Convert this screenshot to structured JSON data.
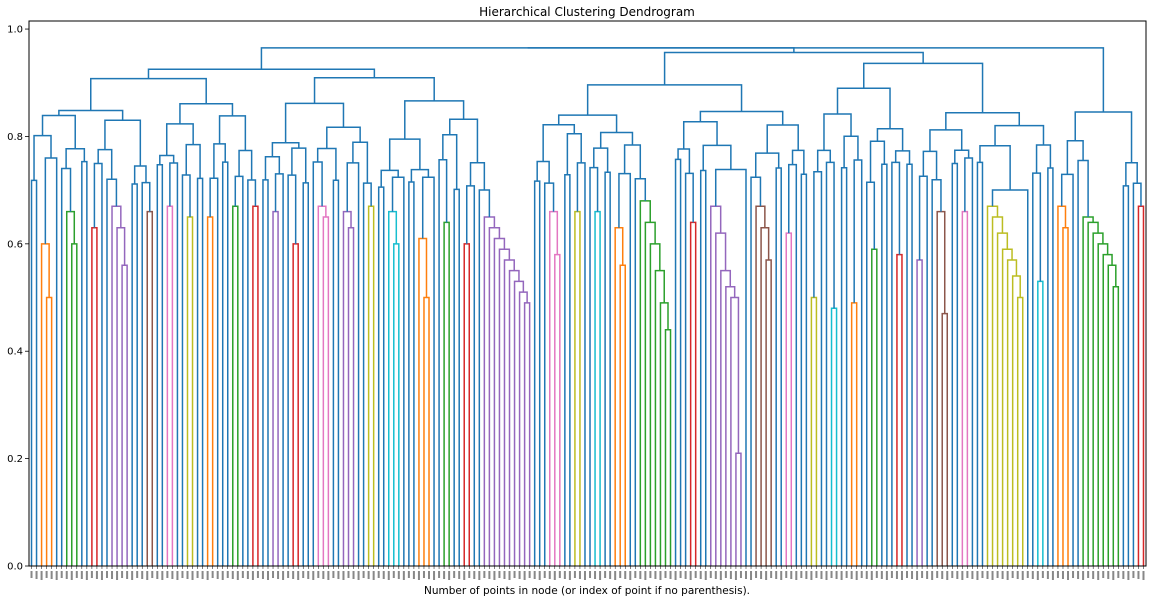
{
  "chart_data": {
    "type": "dendrogram",
    "title": "Hierarchical Clustering Dendrogram",
    "xlabel": "Number of points in node (or index of point if no parenthesis).",
    "ylabel": "",
    "ylim": [
      0.0,
      1.0
    ],
    "y_ticks": [
      0.0,
      0.2,
      0.4,
      0.6,
      0.8,
      1.0
    ],
    "y_tick_labels": [
      "0.0",
      "0.2",
      "0.4",
      "0.6",
      "0.8",
      "1.0"
    ],
    "leaf_count": 222,
    "leaf_labels_note": "leaf index labels are rendered tiny and illegible at bottom",
    "link_color_default": "#1f77b4",
    "top_merge_heights": [
      0.965,
      0.955,
      0.945,
      0.935,
      0.925,
      0.92,
      0.9
    ],
    "color_clusters": [
      {
        "color": "#ff7f0e",
        "heights": [
          0.6,
          0.5
        ]
      },
      {
        "color": "#2ca02c",
        "heights": [
          0.66,
          0.6
        ]
      },
      {
        "color": "#d62728",
        "heights": [
          0.63
        ]
      },
      {
        "color": "#9467bd",
        "heights": [
          0.67,
          0.63,
          0.56
        ]
      },
      {
        "color": "#8c564b",
        "heights": [
          0.66
        ]
      },
      {
        "color": "#e377c2",
        "heights": [
          0.67
        ]
      },
      {
        "color": "#bcbd22",
        "heights": [
          0.65
        ]
      },
      {
        "color": "#ff7f0e",
        "heights": [
          0.65
        ]
      },
      {
        "color": "#2ca02c",
        "heights": [
          0.67
        ]
      },
      {
        "color": "#d62728",
        "heights": [
          0.67
        ]
      },
      {
        "color": "#9467bd",
        "heights": [
          0.66
        ]
      },
      {
        "color": "#d62728",
        "heights": [
          0.6
        ]
      },
      {
        "color": "#e377c2",
        "heights": [
          0.67,
          0.65
        ]
      },
      {
        "color": "#9467bd",
        "heights": [
          0.66,
          0.63
        ]
      },
      {
        "color": "#bcbd22",
        "heights": [
          0.67
        ]
      },
      {
        "color": "#17becf",
        "heights": [
          0.66,
          0.6
        ]
      },
      {
        "color": "#ff7f0e",
        "heights": [
          0.61,
          0.5
        ]
      },
      {
        "color": "#2ca02c",
        "heights": [
          0.64
        ]
      },
      {
        "color": "#d62728",
        "heights": [
          0.6
        ]
      },
      {
        "color": "#9467bd",
        "heights": [
          0.65,
          0.63,
          0.61,
          0.59,
          0.57,
          0.55,
          0.53,
          0.51,
          0.49
        ]
      },
      {
        "color": "#e377c2",
        "heights": [
          0.66,
          0.58
        ]
      },
      {
        "color": "#bcbd22",
        "heights": [
          0.66
        ]
      },
      {
        "color": "#17becf",
        "heights": [
          0.66
        ]
      },
      {
        "color": "#ff7f0e",
        "heights": [
          0.63,
          0.56
        ]
      },
      {
        "color": "#2ca02c",
        "heights": [
          0.68,
          0.64,
          0.6,
          0.55,
          0.49,
          0.44
        ]
      },
      {
        "color": "#d62728",
        "heights": [
          0.64
        ]
      },
      {
        "color": "#9467bd",
        "heights": [
          0.67,
          0.62,
          0.55,
          0.52,
          0.5,
          0.21
        ]
      },
      {
        "color": "#8c564b",
        "heights": [
          0.67,
          0.63,
          0.57
        ]
      },
      {
        "color": "#e377c2",
        "heights": [
          0.62
        ]
      },
      {
        "color": "#bcbd22",
        "heights": [
          0.5
        ]
      },
      {
        "color": "#17becf",
        "heights": [
          0.48
        ]
      },
      {
        "color": "#ff7f0e",
        "heights": [
          0.49
        ]
      },
      {
        "color": "#2ca02c",
        "heights": [
          0.59
        ]
      },
      {
        "color": "#d62728",
        "heights": [
          0.58
        ]
      },
      {
        "color": "#9467bd",
        "heights": [
          0.57
        ]
      },
      {
        "color": "#8c564b",
        "heights": [
          0.66,
          0.47
        ]
      },
      {
        "color": "#e377c2",
        "heights": [
          0.66
        ]
      },
      {
        "color": "#bcbd22",
        "heights": [
          0.67,
          0.65,
          0.62,
          0.59,
          0.57,
          0.54,
          0.5
        ]
      },
      {
        "color": "#17becf",
        "heights": [
          0.53
        ]
      },
      {
        "color": "#ff7f0e",
        "heights": [
          0.67,
          0.63
        ]
      },
      {
        "color": "#2ca02c",
        "heights": [
          0.65,
          0.64,
          0.62,
          0.6,
          0.58,
          0.56,
          0.52
        ]
      },
      {
        "color": "#d62728",
        "heights": [
          0.67
        ]
      }
    ]
  }
}
